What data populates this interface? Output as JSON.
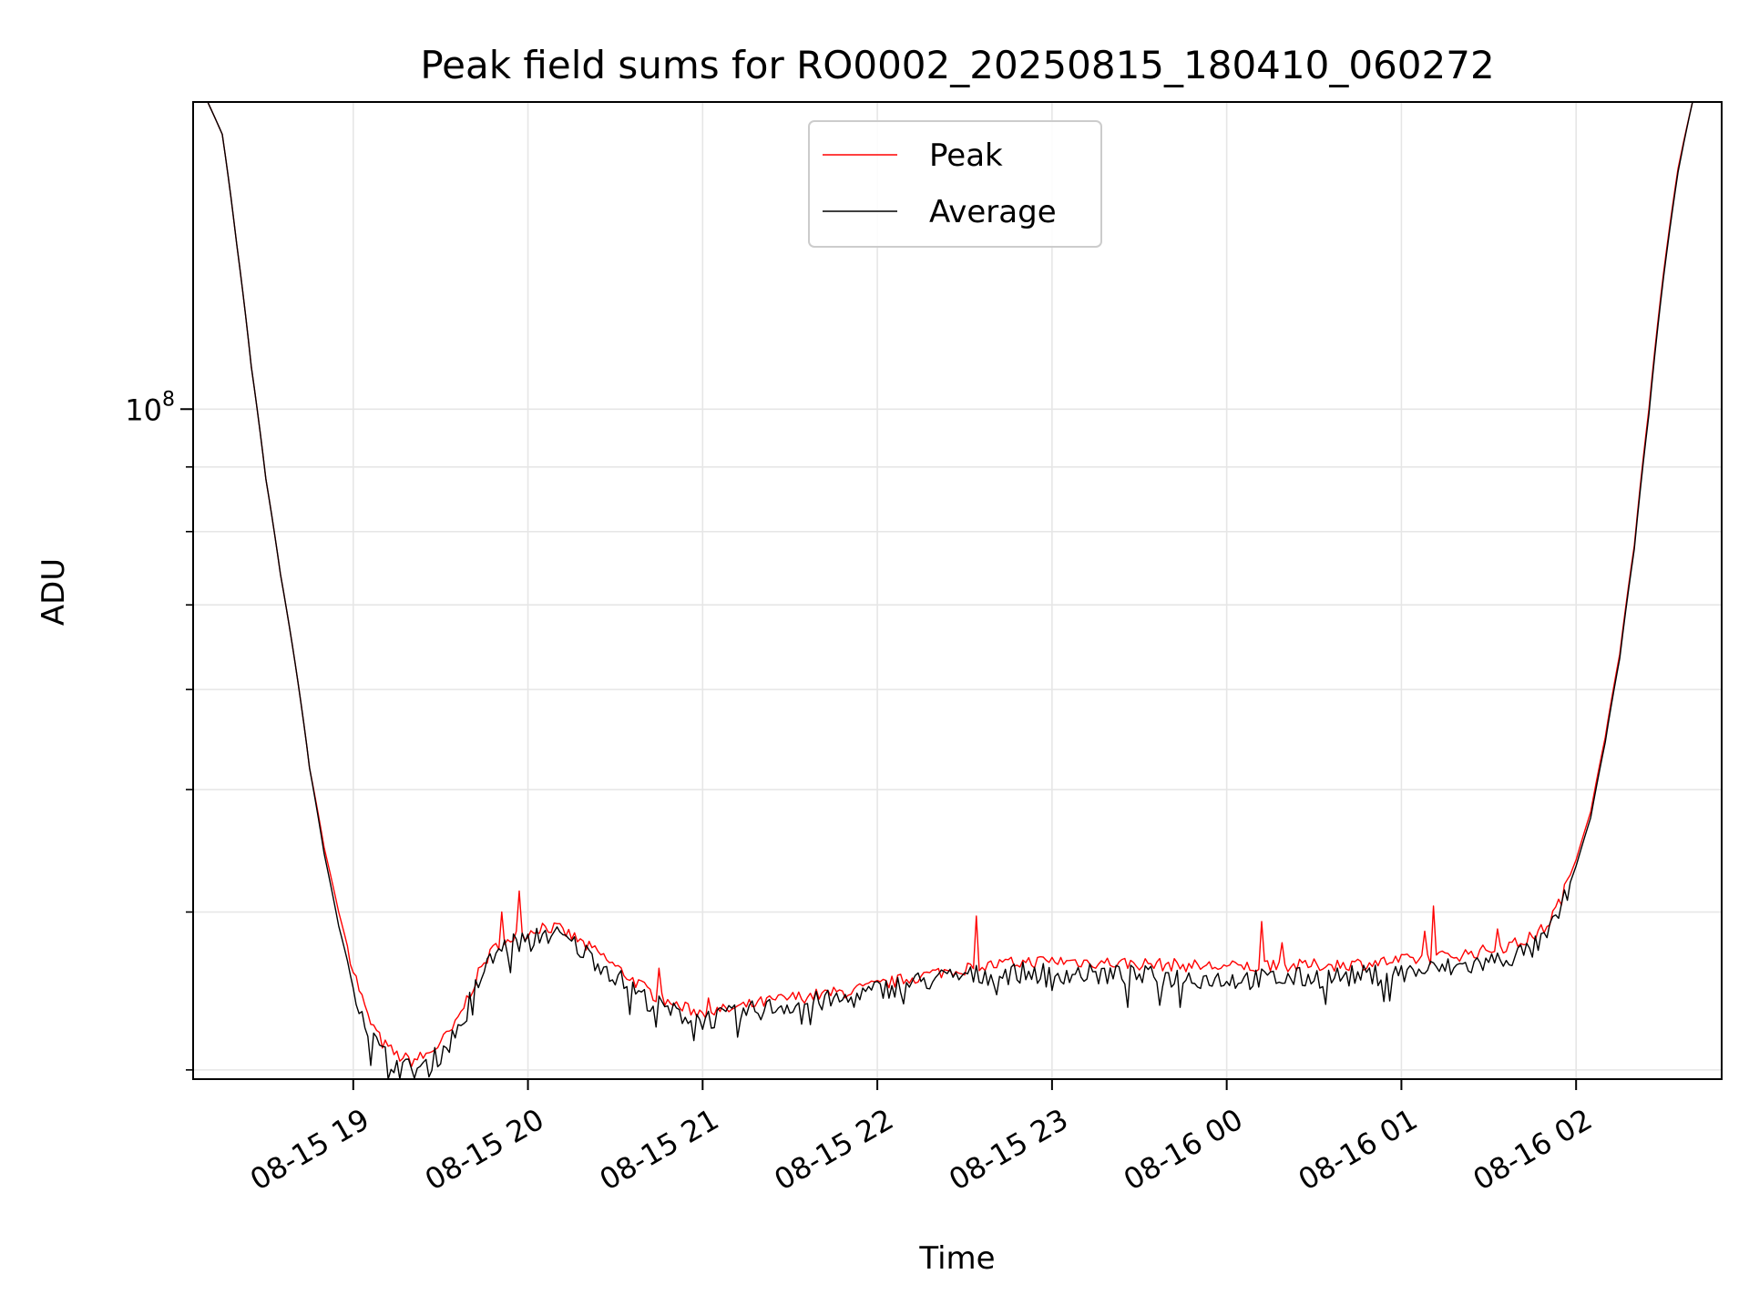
{
  "chart_data": {
    "type": "line",
    "title": "Peak field sums for RO0002_20250815_180410_060272",
    "xlabel": "Time",
    "ylabel": "ADU",
    "y_scale": "log",
    "grid": true,
    "legend_position": "top-center",
    "x_tick_labels": [
      "08-15 19",
      "08-15 20",
      "08-15 21",
      "08-15 22",
      "08-15 23",
      "08-16 00",
      "08-16 01",
      "08-16 02"
    ],
    "x_ticks": [
      "2025-08-15 19:00",
      "2025-08-15 20:00",
      "2025-08-15 21:00",
      "2025-08-15 22:00",
      "2025-08-15 23:00",
      "2025-08-16 00:00",
      "2025-08-16 01:00",
      "2025-08-16 02:00"
    ],
    "xlim": [
      "2025-08-15 18:05",
      "2025-08-16 02:50"
    ],
    "y_tick_label": "10^8",
    "y_tick_value": 100000000,
    "ylim": [
      29500000,
      175000000
    ],
    "colors": {
      "peak": "#ff0000",
      "average": "#000000",
      "grid": "#e6e6e6"
    },
    "series": [
      {
        "name": "Peak",
        "color": "#ff0000",
        "x": [
          "2025-08-15 18:05",
          "2025-08-15 18:10",
          "2025-08-15 18:15",
          "2025-08-15 18:20",
          "2025-08-15 18:25",
          "2025-08-15 18:30",
          "2025-08-15 18:35",
          "2025-08-15 18:40",
          "2025-08-15 18:45",
          "2025-08-15 18:50",
          "2025-08-15 18:55",
          "2025-08-15 19:00",
          "2025-08-15 19:05",
          "2025-08-15 19:10",
          "2025-08-15 19:15",
          "2025-08-15 19:20",
          "2025-08-15 19:25",
          "2025-08-15 19:30",
          "2025-08-15 19:35",
          "2025-08-15 19:40",
          "2025-08-15 19:45",
          "2025-08-15 19:50",
          "2025-08-15 19:55",
          "2025-08-15 20:00",
          "2025-08-15 20:05",
          "2025-08-15 20:10",
          "2025-08-15 20:15",
          "2025-08-15 20:20",
          "2025-08-15 20:25",
          "2025-08-15 20:30",
          "2025-08-15 20:35",
          "2025-08-15 20:40",
          "2025-08-15 20:45",
          "2025-08-15 20:50",
          "2025-08-15 20:55",
          "2025-08-15 21:00",
          "2025-08-15 21:10",
          "2025-08-15 21:20",
          "2025-08-15 21:30",
          "2025-08-15 21:40",
          "2025-08-15 21:50",
          "2025-08-15 22:00",
          "2025-08-15 22:10",
          "2025-08-15 22:20",
          "2025-08-15 22:30",
          "2025-08-15 22:40",
          "2025-08-15 22:50",
          "2025-08-15 23:00",
          "2025-08-15 23:15",
          "2025-08-15 23:30",
          "2025-08-15 23:45",
          "2025-08-16 00:00",
          "2025-08-16 00:15",
          "2025-08-16 00:30",
          "2025-08-16 00:45",
          "2025-08-16 01:00",
          "2025-08-16 01:10",
          "2025-08-16 01:20",
          "2025-08-16 01:30",
          "2025-08-16 01:40",
          "2025-08-16 01:45",
          "2025-08-16 01:50",
          "2025-08-16 01:55",
          "2025-08-16 02:00",
          "2025-08-16 02:05",
          "2025-08-16 02:10",
          "2025-08-16 02:15",
          "2025-08-16 02:20",
          "2025-08-16 02:25",
          "2025-08-16 02:30",
          "2025-08-16 02:35",
          "2025-08-16 02:40",
          "2025-08-16 02:45",
          "2025-08-16 02:50"
        ],
        "values": [
          175000000,
          175000000,
          165000000,
          135000000,
          108000000,
          88000000,
          74000000,
          63000000,
          52000000,
          45000000,
          40000000,
          36000000,
          33000000,
          31500000,
          30800000,
          30500000,
          30800000,
          31500000,
          32500000,
          34500000,
          36500000,
          37800000,
          38200000,
          38500000,
          39000000,
          38800000,
          38300000,
          37600000,
          37000000,
          36200000,
          35500000,
          34800000,
          34200000,
          33800000,
          33500000,
          33300000,
          33500000,
          33900000,
          34200000,
          34400000,
          34600000,
          35000000,
          35400000,
          35800000,
          36100000,
          36300000,
          36500000,
          36600000,
          36500000,
          36400000,
          36300000,
          36200000,
          36200000,
          36300000,
          36400000,
          36600000,
          36800000,
          37000000,
          37300000,
          37800000,
          38200000,
          39000000,
          41000000,
          44000000,
          48000000,
          55000000,
          64000000,
          78000000,
          100000000,
          128000000,
          155000000,
          175000000,
          175000000,
          175000000
        ]
      },
      {
        "name": "Average",
        "color": "#000000",
        "x": [
          "2025-08-15 18:05",
          "2025-08-15 18:10",
          "2025-08-15 18:15",
          "2025-08-15 18:20",
          "2025-08-15 18:25",
          "2025-08-15 18:30",
          "2025-08-15 18:35",
          "2025-08-15 18:40",
          "2025-08-15 18:45",
          "2025-08-15 18:50",
          "2025-08-15 18:55",
          "2025-08-15 19:00",
          "2025-08-15 19:05",
          "2025-08-15 19:10",
          "2025-08-15 19:15",
          "2025-08-15 19:20",
          "2025-08-15 19:25",
          "2025-08-15 19:30",
          "2025-08-15 19:35",
          "2025-08-15 19:40",
          "2025-08-15 19:45",
          "2025-08-15 19:50",
          "2025-08-15 19:55",
          "2025-08-15 20:00",
          "2025-08-15 20:05",
          "2025-08-15 20:10",
          "2025-08-15 20:15",
          "2025-08-15 20:20",
          "2025-08-15 20:25",
          "2025-08-15 20:30",
          "2025-08-15 20:35",
          "2025-08-15 20:40",
          "2025-08-15 20:45",
          "2025-08-15 20:50",
          "2025-08-15 20:55",
          "2025-08-15 21:00",
          "2025-08-15 21:10",
          "2025-08-15 21:20",
          "2025-08-15 21:30",
          "2025-08-15 21:40",
          "2025-08-15 21:50",
          "2025-08-15 22:00",
          "2025-08-15 22:10",
          "2025-08-15 22:20",
          "2025-08-15 22:30",
          "2025-08-15 22:40",
          "2025-08-15 22:50",
          "2025-08-15 23:00",
          "2025-08-15 23:15",
          "2025-08-15 23:30",
          "2025-08-15 23:45",
          "2025-08-16 00:00",
          "2025-08-16 00:15",
          "2025-08-16 00:30",
          "2025-08-16 00:45",
          "2025-08-16 01:00",
          "2025-08-16 01:10",
          "2025-08-16 01:20",
          "2025-08-16 01:30",
          "2025-08-16 01:40",
          "2025-08-16 01:45",
          "2025-08-16 01:50",
          "2025-08-16 01:55",
          "2025-08-16 02:00",
          "2025-08-16 02:05",
          "2025-08-16 02:10",
          "2025-08-16 02:15",
          "2025-08-16 02:20",
          "2025-08-16 02:25",
          "2025-08-16 02:30",
          "2025-08-16 02:35",
          "2025-08-16 02:40",
          "2025-08-16 02:45",
          "2025-08-16 02:50"
        ],
        "values": [
          175000000,
          175000000,
          165000000,
          135000000,
          108000000,
          88000000,
          74000000,
          63000000,
          52000000,
          44500000,
          39000000,
          35000000,
          32300000,
          30900000,
          30300000,
          30000000,
          30300000,
          30900000,
          32000000,
          34000000,
          36000000,
          37300000,
          37800000,
          38000000,
          38500000,
          38300000,
          37800000,
          37100000,
          36400000,
          35600000,
          34900000,
          34200000,
          33700000,
          33300000,
          33100000,
          32900000,
          33100000,
          33500000,
          33800000,
          34000000,
          34100000,
          34700000,
          35100000,
          35400000,
          35600000,
          35700000,
          35800000,
          35800000,
          35700000,
          35600000,
          35500000,
          35400000,
          35400000,
          35500000,
          35600000,
          35800000,
          36000000,
          36200000,
          36500000,
          37000000,
          37400000,
          38200000,
          40300000,
          43500000,
          47500000,
          54500000,
          63500000,
          77500000,
          99000000,
          127000000,
          154000000,
          175000000,
          175000000,
          175000000
        ]
      }
    ]
  }
}
